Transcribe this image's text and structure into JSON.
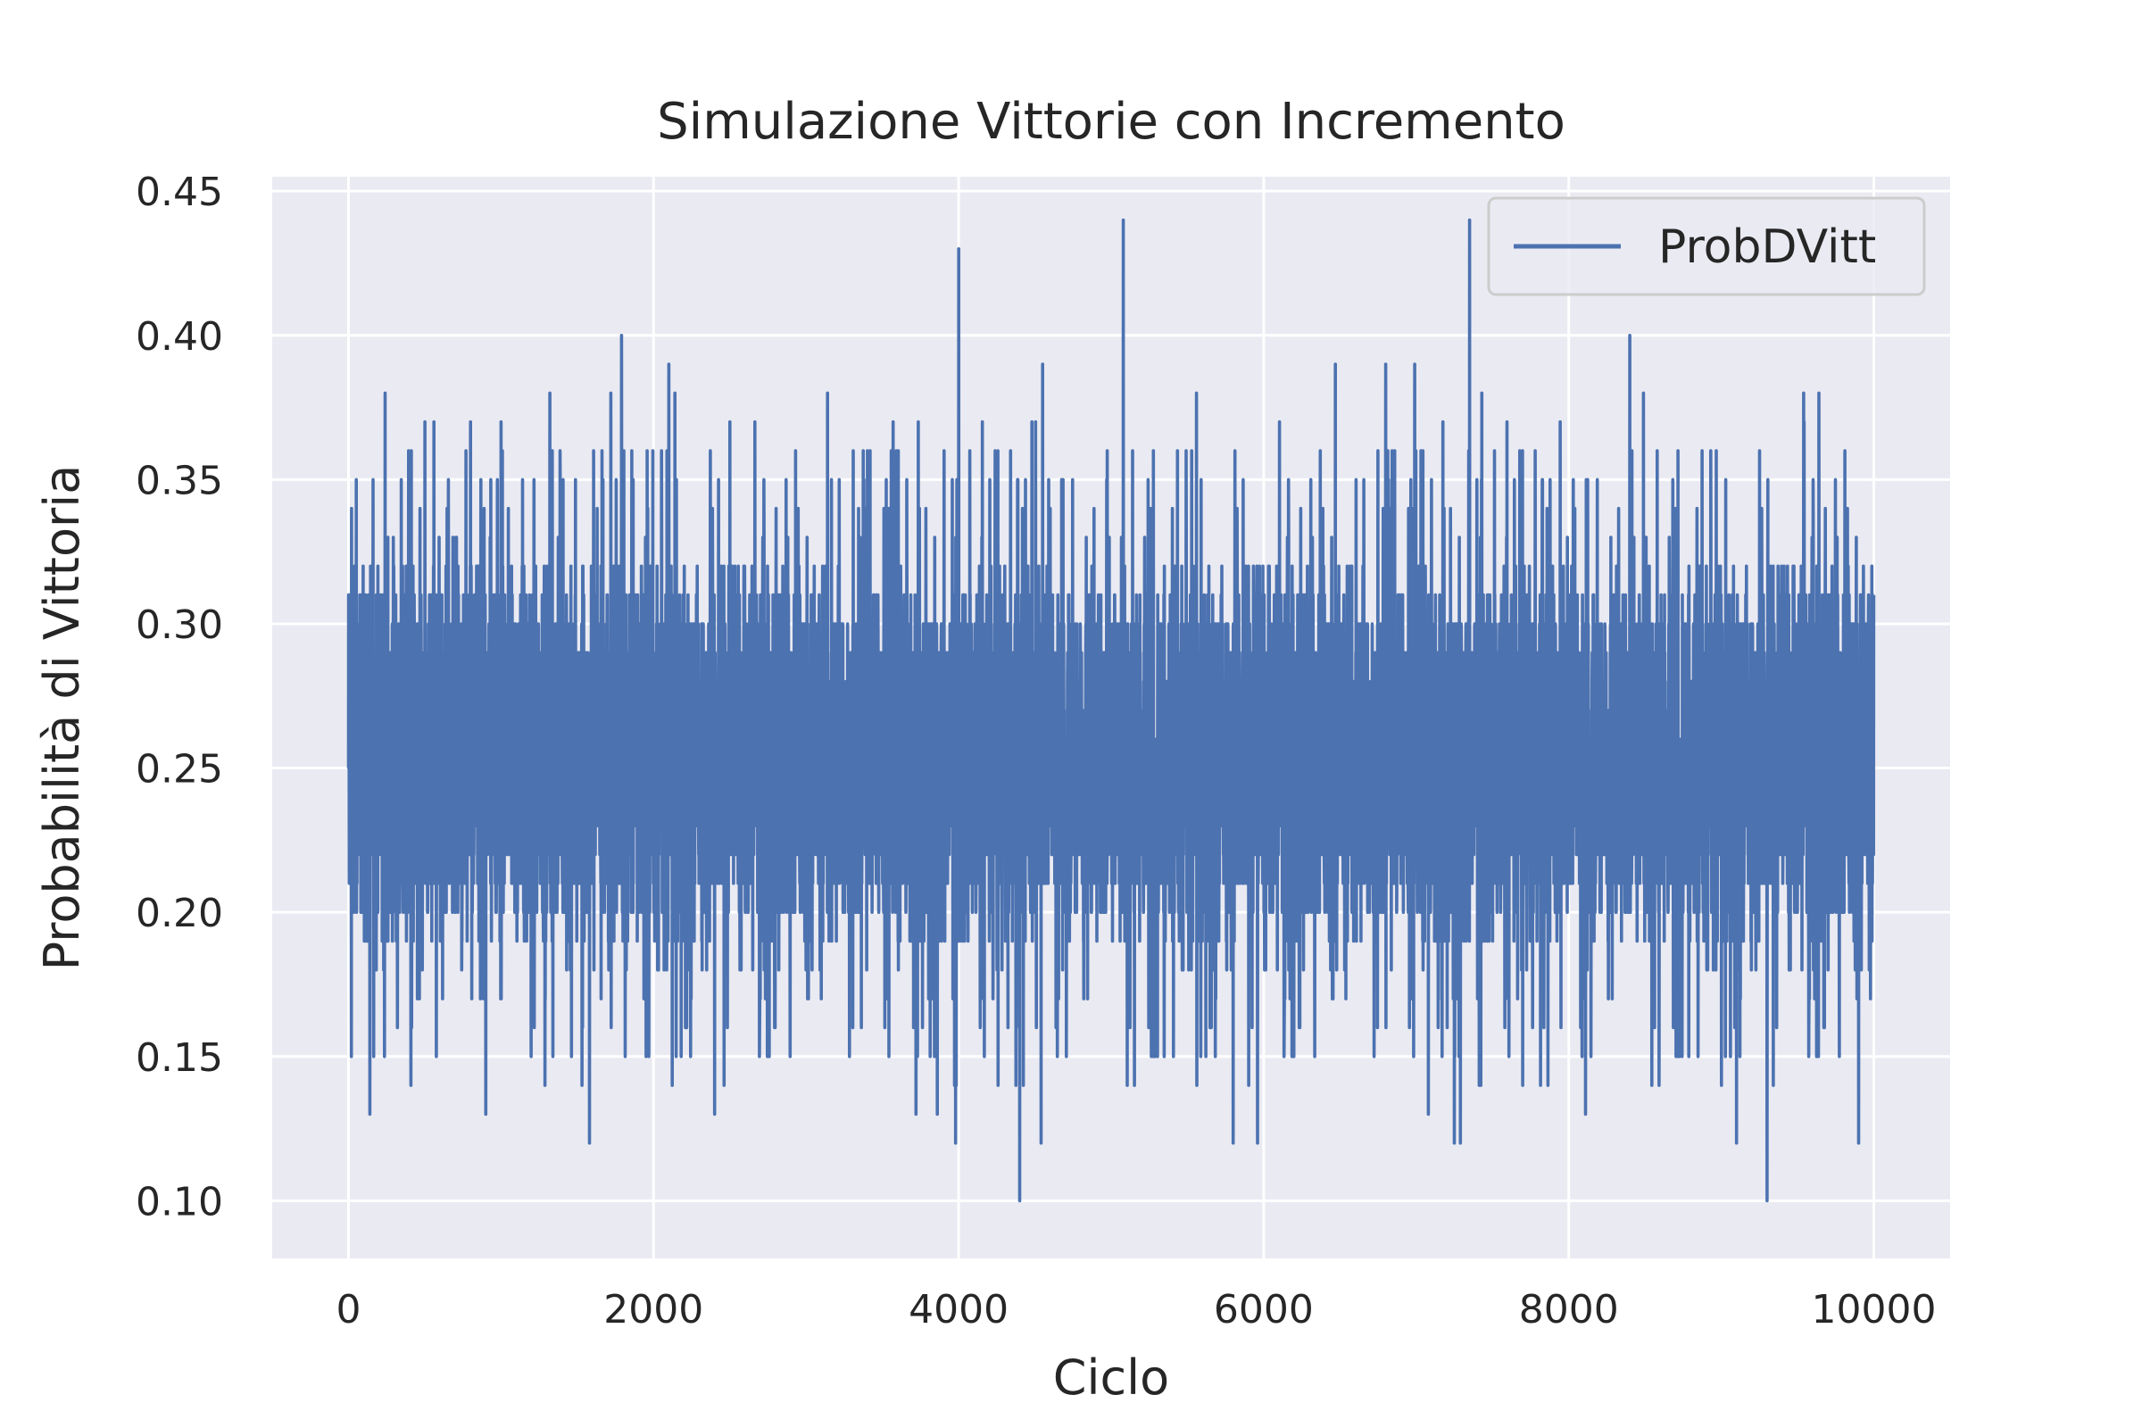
{
  "chart_data": {
    "type": "line",
    "title": "Simulazione Vittorie con Incremento",
    "xlabel": "Ciclo",
    "ylabel": "Probabilità di Vittoria",
    "xlim": [
      -500,
      10500
    ],
    "ylim": [
      0.08,
      0.455
    ],
    "grid": true,
    "legend_position": "top-right",
    "background_color": "#eaeaf2",
    "grid_color": "#ffffff",
    "x_ticks": [
      0,
      2000,
      4000,
      6000,
      8000,
      10000
    ],
    "x_tick_labels": [
      "0",
      "2000",
      "4000",
      "6000",
      "8000",
      "10000"
    ],
    "y_ticks": [
      0.1,
      0.15,
      0.2,
      0.25,
      0.3,
      0.35,
      0.4,
      0.45
    ],
    "y_tick_labels": [
      "0.10",
      "0.15",
      "0.20",
      "0.25",
      "0.30",
      "0.35",
      "0.40",
      "0.45"
    ],
    "series": [
      {
        "name": "ProbDVitt",
        "color": "#4c72b0",
        "x_range": [
          0,
          10000
        ],
        "n_points": 10000,
        "typical_range": [
          0.18,
          0.33
        ],
        "peaks": [
          {
            "x": 40,
            "y": 0.32
          },
          {
            "x": 240,
            "y": 0.38
          },
          {
            "x": 560,
            "y": 0.37
          },
          {
            "x": 1000,
            "y": 0.37
          },
          {
            "x": 1320,
            "y": 0.38
          },
          {
            "x": 1720,
            "y": 0.38
          },
          {
            "x": 1790,
            "y": 0.4
          },
          {
            "x": 2100,
            "y": 0.39
          },
          {
            "x": 2140,
            "y": 0.38
          },
          {
            "x": 2500,
            "y": 0.37
          },
          {
            "x": 3140,
            "y": 0.38
          },
          {
            "x": 3570,
            "y": 0.37
          },
          {
            "x": 4000,
            "y": 0.43
          },
          {
            "x": 4480,
            "y": 0.37
          },
          {
            "x": 4550,
            "y": 0.39
          },
          {
            "x": 5080,
            "y": 0.44
          },
          {
            "x": 5560,
            "y": 0.38
          },
          {
            "x": 6470,
            "y": 0.39
          },
          {
            "x": 6800,
            "y": 0.39
          },
          {
            "x": 6990,
            "y": 0.39
          },
          {
            "x": 7350,
            "y": 0.44
          },
          {
            "x": 7430,
            "y": 0.38
          },
          {
            "x": 8400,
            "y": 0.4
          },
          {
            "x": 8490,
            "y": 0.38
          },
          {
            "x": 9540,
            "y": 0.38
          },
          {
            "x": 9640,
            "y": 0.38
          }
        ],
        "troughs": [
          {
            "x": 140,
            "y": 0.13
          },
          {
            "x": 900,
            "y": 0.13
          },
          {
            "x": 1580,
            "y": 0.12
          },
          {
            "x": 2400,
            "y": 0.13
          },
          {
            "x": 3720,
            "y": 0.13
          },
          {
            "x": 3860,
            "y": 0.13
          },
          {
            "x": 3980,
            "y": 0.12
          },
          {
            "x": 4400,
            "y": 0.1
          },
          {
            "x": 4540,
            "y": 0.12
          },
          {
            "x": 5800,
            "y": 0.12
          },
          {
            "x": 5960,
            "y": 0.12
          },
          {
            "x": 7080,
            "y": 0.13
          },
          {
            "x": 7250,
            "y": 0.12
          },
          {
            "x": 7290,
            "y": 0.12
          },
          {
            "x": 8110,
            "y": 0.13
          },
          {
            "x": 9100,
            "y": 0.12
          },
          {
            "x": 9300,
            "y": 0.1
          },
          {
            "x": 9900,
            "y": 0.12
          }
        ]
      }
    ]
  }
}
